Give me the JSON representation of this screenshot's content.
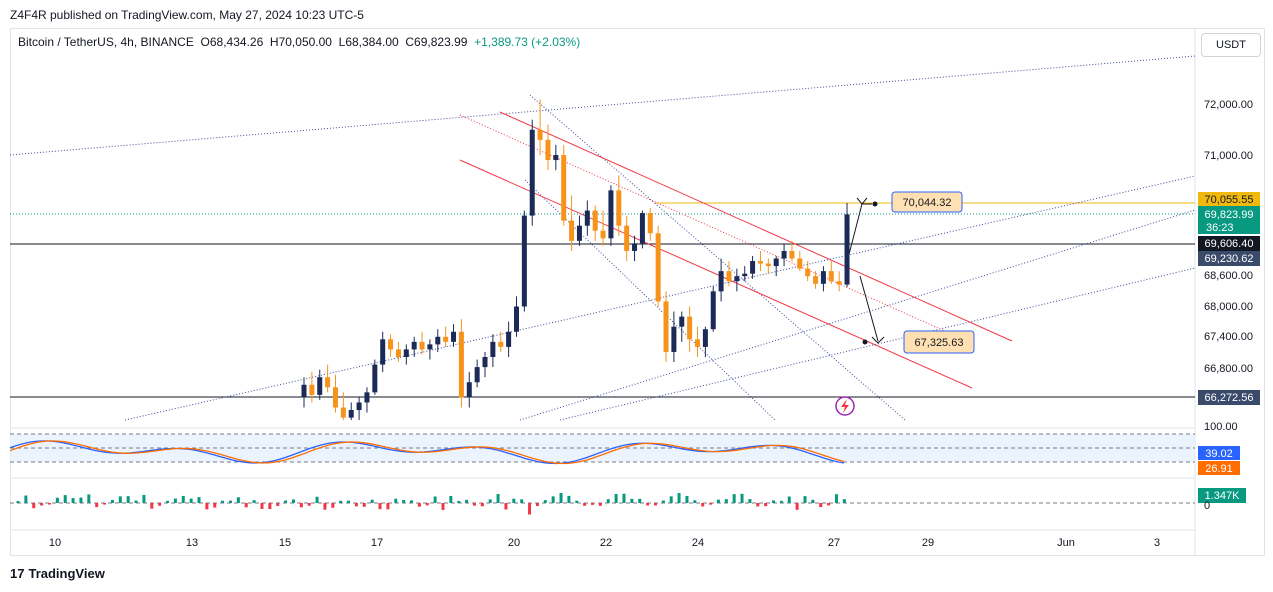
{
  "header": {
    "publisher": "Z4F4R published on TradingView.com, May 27, 2024 10:23 UTC-5"
  },
  "legend": {
    "symbol": "Bitcoin / TetherUS, 4h, BINANCE",
    "open": "O68,434.26",
    "high": "H70,050.00",
    "low": "L68,384.00",
    "close": "C69,823.99",
    "change": "+1,389.73 (+2.03%)"
  },
  "currency": "USDT",
  "logo": {
    "mark": "17",
    "text": "TradingView"
  },
  "colors": {
    "up": "#089981",
    "down": "#f23645",
    "bull_candle": "#1b2a57",
    "bear_candle": "#f7931a",
    "stoch_k": "#2962ff",
    "stoch_d": "#ff6d00"
  },
  "chart_data": {
    "type": "candlestick",
    "price_axis": {
      "ticks": [
        72000,
        71000,
        68600,
        68000,
        67400,
        66800
      ],
      "tick_labels": [
        "72,000.00",
        "71,000.00",
        "68,600.00",
        "68,000.00",
        "67,400.00",
        "66,800.00"
      ]
    },
    "time_axis": {
      "ticks": [
        "10",
        "13",
        "15",
        "17",
        "20",
        "22",
        "24",
        "27",
        "29",
        "Jun",
        "3"
      ]
    },
    "price_labels": [
      {
        "value": 70055.55,
        "text": "70,055.55",
        "kind": "resistance-line"
      },
      {
        "value": 69823.99,
        "text": "69,823.99",
        "kind": "last-price",
        "countdown": "36:23"
      },
      {
        "value": 69606.4,
        "text": "69,606.40",
        "kind": "horizontal-line"
      },
      {
        "value": 69230.62,
        "text": "69,230.62",
        "kind": "moving-average"
      },
      {
        "value": 66272.56,
        "text": "66,272.56",
        "kind": "support-line"
      }
    ],
    "callouts": [
      {
        "text": "70,044.32",
        "direction": "up"
      },
      {
        "text": "67,325.63",
        "direction": "down"
      }
    ],
    "candles": [
      [
        66200,
        66600,
        66000,
        66450
      ],
      [
        66450,
        66700,
        66100,
        66250
      ],
      [
        66250,
        66750,
        66150,
        66600
      ],
      [
        66600,
        66850,
        66300,
        66400
      ],
      [
        66400,
        66650,
        65900,
        66000
      ],
      [
        66000,
        66300,
        65600,
        65800
      ],
      [
        65800,
        66100,
        65500,
        65950
      ],
      [
        65950,
        66200,
        65700,
        66100
      ],
      [
        66100,
        66400,
        65900,
        66300
      ],
      [
        66300,
        66950,
        66250,
        66850
      ],
      [
        66850,
        67500,
        66700,
        67350
      ],
      [
        67350,
        67450,
        67000,
        67150
      ],
      [
        67150,
        67300,
        66900,
        67000
      ],
      [
        67000,
        67250,
        66850,
        67150
      ],
      [
        67150,
        67400,
        67000,
        67300
      ],
      [
        67300,
        67500,
        67050,
        67150
      ],
      [
        67150,
        67350,
        66950,
        67250
      ],
      [
        67250,
        67550,
        67100,
        67400
      ],
      [
        67400,
        67600,
        67200,
        67300
      ],
      [
        67300,
        67650,
        67200,
        67500
      ],
      [
        67500,
        67750,
        66000,
        66200
      ],
      [
        66200,
        66700,
        66000,
        66500
      ],
      [
        66500,
        66950,
        66400,
        66800
      ],
      [
        66800,
        67100,
        66600,
        67000
      ],
      [
        67000,
        67450,
        66800,
        67300
      ],
      [
        67300,
        67500,
        67100,
        67200
      ],
      [
        67200,
        67700,
        67000,
        67500
      ],
      [
        67500,
        68200,
        67400,
        68000
      ],
      [
        68000,
        69900,
        67900,
        69800
      ],
      [
        69800,
        71700,
        69600,
        71500
      ],
      [
        71500,
        72100,
        71000,
        71300
      ],
      [
        71300,
        71600,
        70700,
        70900
      ],
      [
        70900,
        71200,
        70700,
        71000
      ],
      [
        71000,
        71200,
        69600,
        69700
      ],
      [
        69700,
        70200,
        69100,
        69300
      ],
      [
        69300,
        69800,
        69200,
        69600
      ],
      [
        69600,
        70100,
        69400,
        69900
      ],
      [
        69900,
        70000,
        69300,
        69500
      ],
      [
        69500,
        69900,
        69200,
        69350
      ],
      [
        69350,
        70400,
        69200,
        70300
      ],
      [
        70300,
        70600,
        69400,
        69600
      ],
      [
        69600,
        69800,
        68900,
        69100
      ],
      [
        69100,
        69400,
        68900,
        69250
      ],
      [
        69250,
        69900,
        69150,
        69850
      ],
      [
        69850,
        69950,
        69300,
        69450
      ],
      [
        69450,
        69600,
        68000,
        68100
      ],
      [
        68100,
        68300,
        66900,
        67100
      ],
      [
        67100,
        67900,
        66900,
        67600
      ],
      [
        67600,
        67900,
        67300,
        67800
      ],
      [
        67800,
        68000,
        67100,
        67350
      ],
      [
        67350,
        67600,
        67000,
        67200
      ],
      [
        67200,
        67600,
        67000,
        67550
      ],
      [
        67550,
        68400,
        67500,
        68300
      ],
      [
        68300,
        68950,
        68100,
        68700
      ],
      [
        68700,
        68900,
        68400,
        68500
      ],
      [
        68500,
        68750,
        68300,
        68600
      ],
      [
        68600,
        68800,
        68500,
        68650
      ],
      [
        68650,
        69000,
        68550,
        68900
      ],
      [
        68900,
        69100,
        68700,
        68850
      ],
      [
        68850,
        68950,
        68650,
        68800
      ],
      [
        68800,
        69000,
        68600,
        68950
      ],
      [
        68950,
        69250,
        68800,
        69100
      ],
      [
        69100,
        69300,
        68900,
        68950
      ],
      [
        68950,
        69100,
        68700,
        68750
      ],
      [
        68750,
        68900,
        68500,
        68600
      ],
      [
        68600,
        68700,
        68350,
        68450
      ],
      [
        68450,
        68800,
        68300,
        68700
      ],
      [
        68700,
        68900,
        68450,
        68500
      ],
      [
        68500,
        68700,
        68300,
        68434
      ],
      [
        68434,
        70050,
        68384,
        69824
      ]
    ],
    "stochastic": {
      "levels": [
        100,
        39.02,
        26.91
      ],
      "level_labels": [
        "100.00",
        "39.02",
        "26.91"
      ]
    },
    "volume": {
      "last_label": "1.347K",
      "zero_label": "0"
    }
  }
}
